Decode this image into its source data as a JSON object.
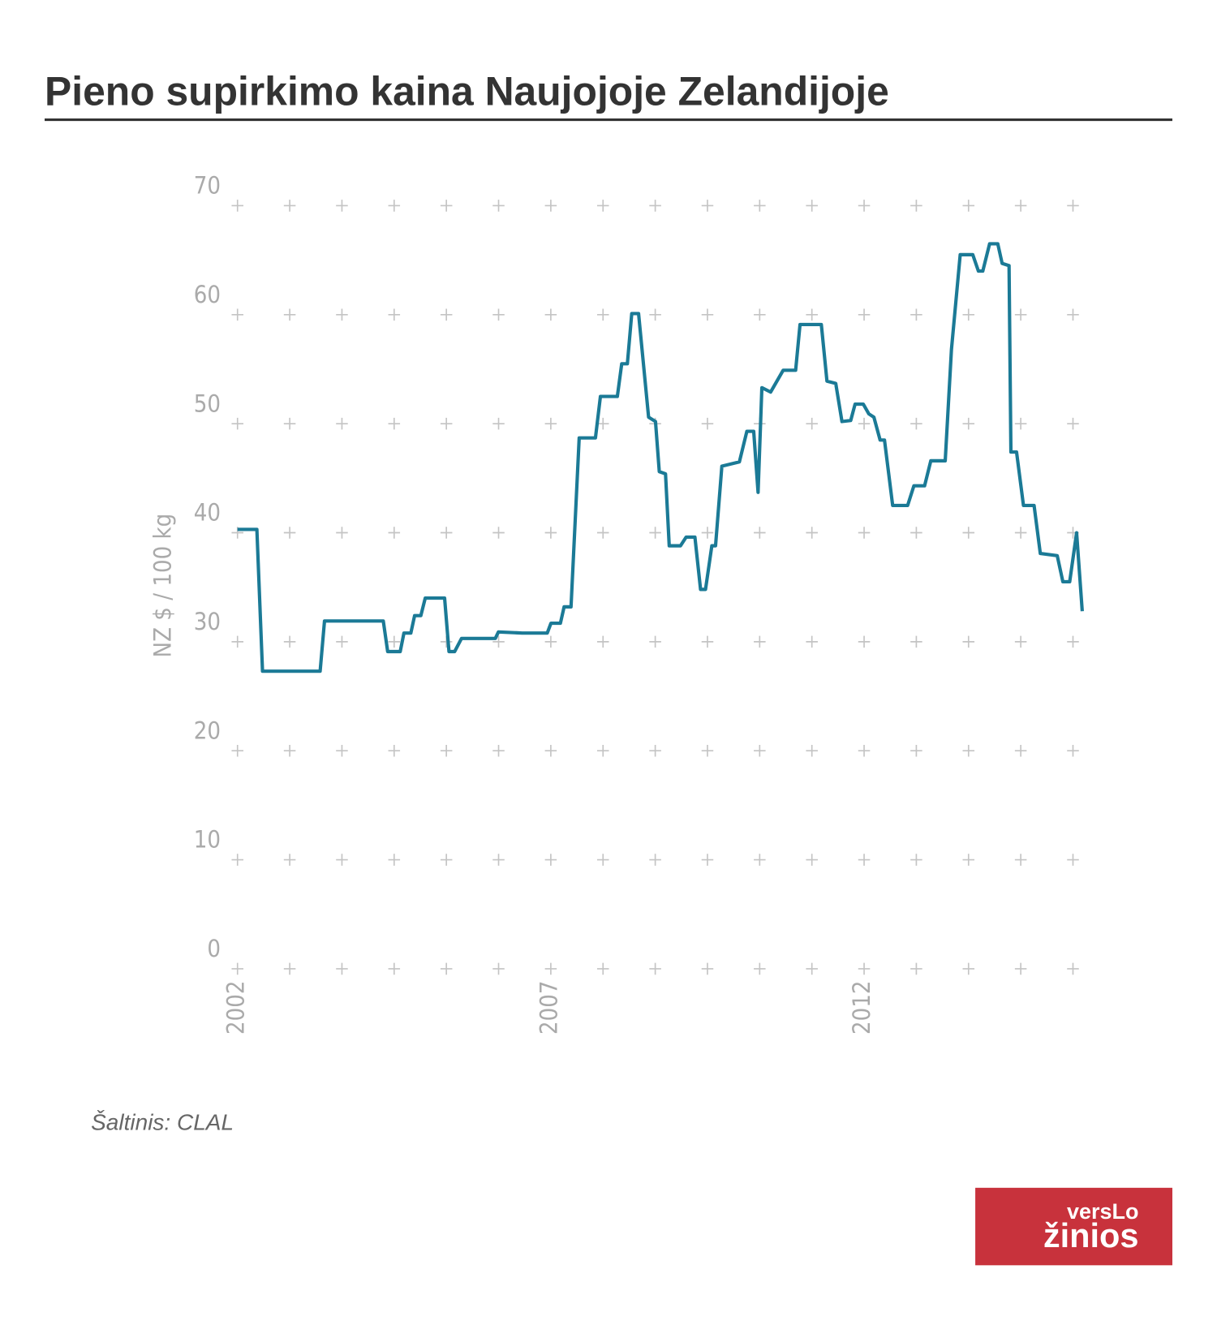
{
  "chart_data": {
    "type": "line",
    "title": "Pieno supirkimo kaina Naujojoje Zelandijoje",
    "ylabel": "NZ $ / 100 kg",
    "color": "#1b7a96",
    "xlim": [
      2002,
      2015.5
    ],
    "xticks": [
      2002,
      2007,
      2012
    ],
    "ylim": [
      0,
      70
    ],
    "yticks": [
      0,
      10,
      20,
      30,
      40,
      50,
      60,
      70
    ],
    "grid": true,
    "x": [
      2002.0,
      2002.31,
      2002.4,
      2003.32,
      2003.39,
      2004.33,
      2004.4,
      2004.6,
      2004.66,
      2004.77,
      2004.83,
      2004.93,
      2005.0,
      2005.31,
      2005.38,
      2005.47,
      2005.58,
      2006.12,
      2006.17,
      2006.55,
      2006.95,
      2007.01,
      2007.16,
      2007.22,
      2007.33,
      2007.46,
      2007.72,
      2007.8,
      2008.07,
      2008.14,
      2008.23,
      2008.3,
      2008.41,
      2008.57,
      2008.68,
      2008.74,
      2008.84,
      2008.9,
      2009.08,
      2009.17,
      2009.31,
      2009.4,
      2009.48,
      2009.58,
      2009.64,
      2009.74,
      2010.02,
      2010.14,
      2010.25,
      2010.32,
      2010.38,
      2010.52,
      2010.72,
      2010.92,
      2010.99,
      2011.33,
      2011.42,
      2011.56,
      2011.66,
      2011.8,
      2011.87,
      2012.0,
      2012.09,
      2012.17,
      2012.27,
      2012.34,
      2012.47,
      2012.71,
      2012.81,
      2012.98,
      2013.08,
      2013.31,
      2013.41,
      2013.55,
      2013.75,
      2013.84,
      2013.91,
      2014.02,
      2014.15,
      2014.22,
      2014.33,
      2014.36,
      2014.45,
      2014.56,
      2014.73,
      2014.83,
      2015.1,
      2015.19,
      2015.3,
      2015.41,
      2015.5
    ],
    "values": [
      40.3,
      40.3,
      27.3,
      27.3,
      31.9,
      31.9,
      29.1,
      29.1,
      30.8,
      30.8,
      32.4,
      32.4,
      34.0,
      34.0,
      29.1,
      29.1,
      30.3,
      30.3,
      30.9,
      30.8,
      30.8,
      31.7,
      31.7,
      33.2,
      33.2,
      48.7,
      48.7,
      52.5,
      52.5,
      55.5,
      55.5,
      60.1,
      60.1,
      50.6,
      50.2,
      45.6,
      45.4,
      38.8,
      38.8,
      39.6,
      39.6,
      34.8,
      34.8,
      38.8,
      38.8,
      46.1,
      46.5,
      49.3,
      49.3,
      43.7,
      53.3,
      52.9,
      54.9,
      54.9,
      59.1,
      59.1,
      53.9,
      53.7,
      50.2,
      50.3,
      51.8,
      51.8,
      50.9,
      50.6,
      48.5,
      48.5,
      42.5,
      42.5,
      44.3,
      44.3,
      46.6,
      46.6,
      56.8,
      65.5,
      65.5,
      64.0,
      64.0,
      66.5,
      66.5,
      64.7,
      64.5,
      47.4,
      47.4,
      42.5,
      42.5,
      38.1,
      37.9,
      35.5,
      35.5,
      40.0,
      32.8
    ]
  },
  "source": "Šaltinis: CLAL",
  "logo": [
    "versLo",
    "žinios"
  ]
}
